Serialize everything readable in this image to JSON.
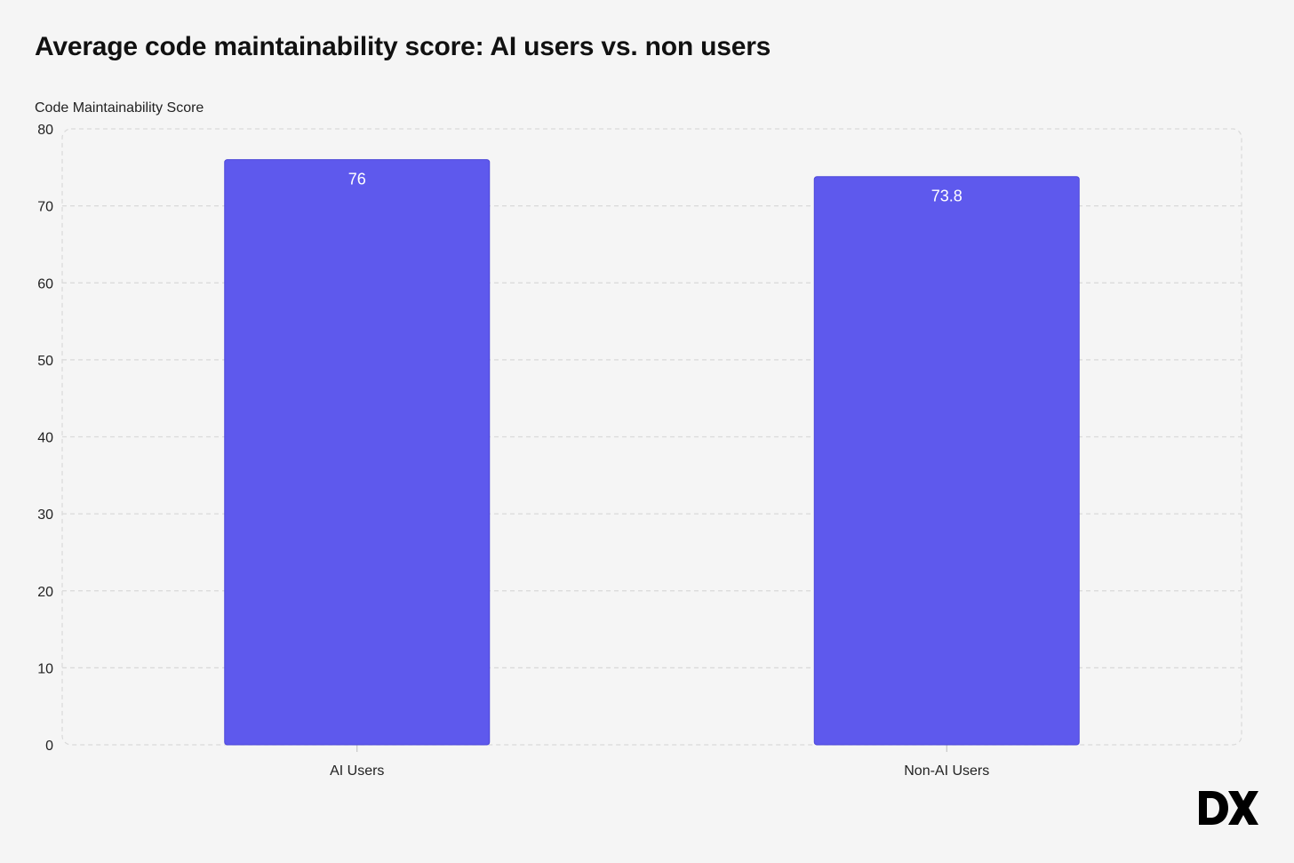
{
  "chart_data": {
    "type": "bar",
    "title": "Average code maintainability score: AI users vs. non users",
    "ylabel": "Code Maintainability Score",
    "xlabel": "",
    "categories": [
      "AI Users",
      "Non-AI Users"
    ],
    "values": [
      76,
      73.8
    ],
    "value_labels": [
      "76",
      "73.8"
    ],
    "ylim": [
      0,
      80
    ],
    "yticks": [
      0,
      10,
      20,
      30,
      40,
      50,
      60,
      70,
      80
    ],
    "grid": true,
    "legend": "none",
    "bar_color": "#5e59ed"
  },
  "logo": {
    "name": "dx-logo-icon",
    "text": "DX"
  },
  "colors": {
    "background": "#f5f5f5",
    "bar": "#5e59ed",
    "grid": "#d9d9d9",
    "text": "#111111"
  }
}
